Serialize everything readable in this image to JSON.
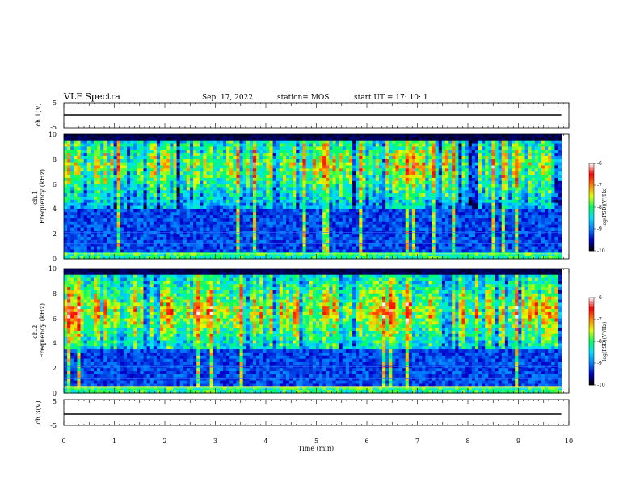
{
  "header": {
    "title": "VLF Spectra",
    "date": "Sep. 17, 2022",
    "station": "station= MOS",
    "start_ut": "start  UT =   17: 10: 1"
  },
  "chart_data": {
    "type": "heatmap",
    "time_axis": {
      "label": "Time  (min)",
      "range": [
        0,
        10
      ],
      "ticks": [
        "0",
        "1",
        "2",
        "3",
        "4",
        "5",
        "6",
        "7",
        "8",
        "9",
        "10"
      ],
      "extent_min": 9.85
    },
    "waveform_ch1": {
      "ylabel": "ch.1(V)",
      "range": [
        -5,
        5
      ],
      "tick_labels": [
        "5",
        "-5"
      ],
      "level": 0
    },
    "spectrogram_ch1": {
      "ylabel": "ch.1\nFrequency  (kHz)",
      "range": [
        0,
        10
      ],
      "tick_labels": [
        "0",
        "2",
        "4",
        "6",
        "8",
        "10"
      ],
      "activity_band_khz": [
        4,
        10
      ],
      "peak_khz": 7.5,
      "intensity": "moderate"
    },
    "spectrogram_ch2": {
      "ylabel": "ch.2\nFrequency  (kHz)",
      "range": [
        0,
        10
      ],
      "tick_labels": [
        "0",
        "2",
        "4",
        "6",
        "8",
        "10"
      ],
      "activity_band_khz": [
        3.5,
        10
      ],
      "peak_khz": 6.5,
      "intensity": "strong"
    },
    "waveform_ch3": {
      "ylabel": "ch.3(V)",
      "range": [
        -5,
        5
      ],
      "tick_labels": [
        "5",
        "-5"
      ],
      "level": 0
    },
    "colorbar": {
      "label": "log(PSD)(V²/Hz)",
      "range": [
        -10,
        -6
      ],
      "tick_labels": [
        "-6",
        "-7",
        "-8",
        "-9",
        "-10"
      ],
      "colors": [
        "#000000",
        "#0000c8",
        "#0080ff",
        "#00e0ff",
        "#00ff60",
        "#e0ff00",
        "#ff8000",
        "#ff0000",
        "#ffffff"
      ]
    }
  }
}
